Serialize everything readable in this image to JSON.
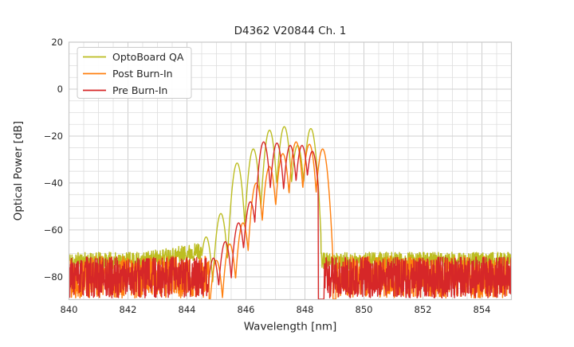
{
  "chart_data": {
    "type": "line",
    "title": "D4362 V20844 Ch. 1",
    "xlabel": "Wavelength [nm]",
    "ylabel": "Optical Power [dB]",
    "xlim": [
      840,
      855
    ],
    "ylim": [
      -89.7,
      20
    ],
    "xticks": [
      840,
      842,
      844,
      846,
      848,
      850,
      852,
      854
    ],
    "yticks": [
      20,
      0,
      -20,
      -40,
      -60,
      -80
    ],
    "grid": {
      "x_step": 0.5,
      "y_step": 5,
      "on": true
    },
    "legend": {
      "position": "upper left",
      "entries": [
        "OptoBoard QA",
        "Post Burn-In",
        "Pre Burn-In"
      ]
    },
    "series": [
      {
        "name": "OptoBoard QA",
        "color": "#bcbd22",
        "noise_left_end": 844.5,
        "noise_right_start": 848.55,
        "noise": {
          "base": -71.8,
          "down": -5.0,
          "up": 2.3,
          "ramp": {
            "from": 842.4,
            "to": 844.5,
            "rise": 4.3
          }
        },
        "modes": [
          [
            844.65,
            -63
          ],
          [
            845.15,
            -53
          ],
          [
            845.7,
            -31.5
          ],
          [
            846.25,
            -25.5
          ],
          [
            846.8,
            -17.5
          ],
          [
            847.3,
            -16
          ],
          [
            847.75,
            -24
          ],
          [
            848.2,
            -16.8
          ]
        ],
        "falloff_db": 24,
        "seed": 11
      },
      {
        "name": "Post Burn-In",
        "color": "#ff7f0e",
        "noise_left_end": 844.75,
        "noise_right_start": 849.05,
        "noise": {
          "base": -78.0,
          "down": -11.0,
          "up": 6.8
        },
        "modes": [
          [
            845.0,
            -73
          ],
          [
            845.45,
            -66
          ],
          [
            845.9,
            -57
          ],
          [
            846.35,
            -40
          ],
          [
            846.8,
            -33
          ],
          [
            847.25,
            -27.5
          ],
          [
            847.7,
            -22.5
          ],
          [
            848.15,
            -23.5
          ],
          [
            848.6,
            -25.5
          ]
        ],
        "falloff_db": 24,
        "band_hi": 848.95,
        "seed": 22
      },
      {
        "name": "Pre Burn-In",
        "color": "#d62728",
        "noise_left_end": 844.7,
        "noise_right_start": 848.65,
        "noise": {
          "base": -78.5,
          "down": -10.5,
          "up": 7.0
        },
        "modes": [
          [
            844.9,
            -72
          ],
          [
            845.3,
            -65
          ],
          [
            845.75,
            -57
          ],
          [
            846.15,
            -48
          ],
          [
            846.6,
            -22.5
          ],
          [
            847.05,
            -23
          ],
          [
            847.5,
            -24
          ],
          [
            847.9,
            -24
          ],
          [
            848.25,
            -26.5
          ]
        ],
        "falloff_db": 24,
        "band_hi": 848.45,
        "seed": 33
      }
    ],
    "style": {
      "grid_color_major": "#cfcfcf",
      "grid_color_minor": "#dedede",
      "spine_color": "#c8c8c8",
      "text_color": "#262626",
      "legend_border": "#cccccc"
    }
  }
}
